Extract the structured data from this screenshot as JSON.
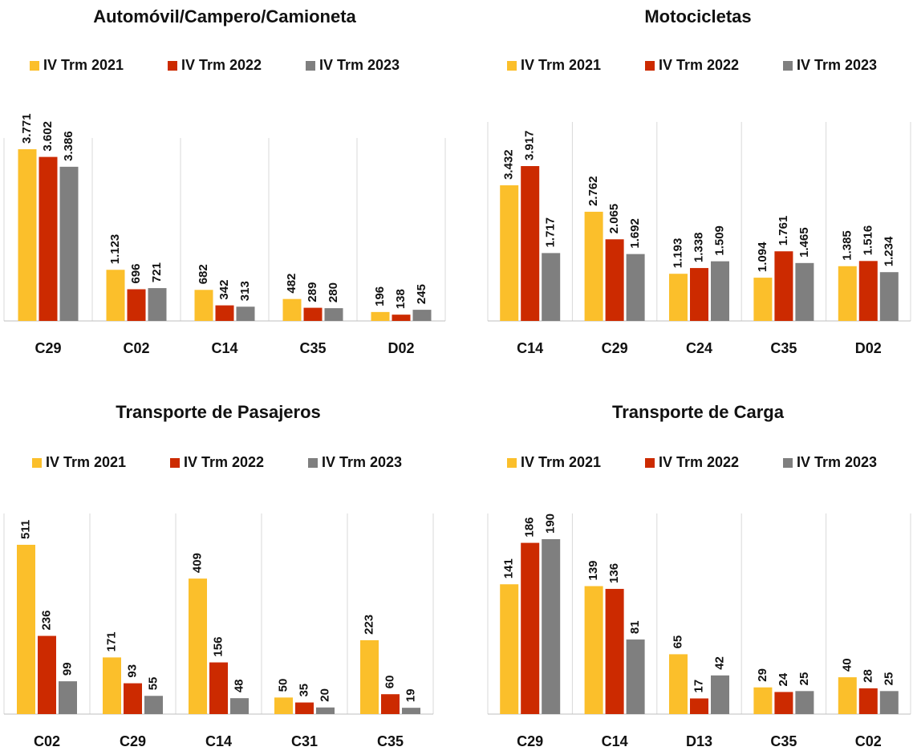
{
  "chart_data": [
    {
      "type": "bar",
      "title": "Automóvil/Campero/Camioneta",
      "categories": [
        "C29",
        "C02",
        "C14",
        "C35",
        "D02"
      ],
      "series": [
        {
          "name": "IV Trm 2021",
          "color": "#fbbf2b",
          "values": [
            3771,
            1123,
            682,
            482,
            196
          ],
          "value_labels": [
            "3.771",
            "1.123",
            "682",
            "482",
            "196"
          ]
        },
        {
          "name": "IV Trm 2022",
          "color": "#cc2a00",
          "values": [
            3602,
            696,
            342,
            289,
            138
          ],
          "value_labels": [
            "3.602",
            "696",
            "342",
            "289",
            "138"
          ]
        },
        {
          "name": "IV Trm 2023",
          "color": "#7f7f7f",
          "values": [
            3386,
            721,
            313,
            280,
            245
          ],
          "value_labels": [
            "3.386",
            "721",
            "313",
            "280",
            "245"
          ]
        }
      ]
    },
    {
      "type": "bar",
      "title": "Motocicletas",
      "categories": [
        "C14",
        "C29",
        "C24",
        "C35",
        "D02"
      ],
      "series": [
        {
          "name": "IV Trm 2021",
          "color": "#fbbf2b",
          "values": [
            3432,
            2762,
            1193,
            1094,
            1385
          ],
          "value_labels": [
            "3.432",
            "2.762",
            "1.193",
            "1.094",
            "1.385"
          ]
        },
        {
          "name": "IV Trm 2022",
          "color": "#cc2a00",
          "values": [
            3917,
            2065,
            1338,
            1761,
            1516
          ],
          "value_labels": [
            "3.917",
            "2.065",
            "1.338",
            "1.761",
            "1.516"
          ]
        },
        {
          "name": "IV Trm 2023",
          "color": "#7f7f7f",
          "values": [
            1717,
            1692,
            1509,
            1465,
            1234
          ],
          "value_labels": [
            "1.717",
            "1.692",
            "1.509",
            "1.465",
            "1.234"
          ]
        }
      ]
    },
    {
      "type": "bar",
      "title": "Transporte de Pasajeros",
      "categories": [
        "C02",
        "C29",
        "C14",
        "C31",
        "C35"
      ],
      "series": [
        {
          "name": "IV Trm 2021",
          "color": "#fbbf2b",
          "values": [
            511,
            171,
            409,
            50,
            223
          ]
        },
        {
          "name": "IV Trm 2022",
          "color": "#cc2a00",
          "values": [
            236,
            93,
            156,
            35,
            60
          ]
        },
        {
          "name": "IV Trm 2023",
          "color": "#7f7f7f",
          "values": [
            99,
            55,
            48,
            20,
            19
          ]
        }
      ]
    },
    {
      "type": "bar",
      "title": "Transporte de Carga",
      "categories": [
        "C29",
        "C14",
        "D13",
        "C35",
        "C02"
      ],
      "series": [
        {
          "name": "IV Trm 2021",
          "color": "#fbbf2b",
          "values": [
            141,
            139,
            65,
            29,
            40
          ]
        },
        {
          "name": "IV Trm 2022",
          "color": "#cc2a00",
          "values": [
            186,
            136,
            17,
            24,
            28
          ]
        },
        {
          "name": "IV Trm 2023",
          "color": "#7f7f7f",
          "values": [
            190,
            81,
            42,
            25,
            25
          ]
        }
      ]
    }
  ]
}
